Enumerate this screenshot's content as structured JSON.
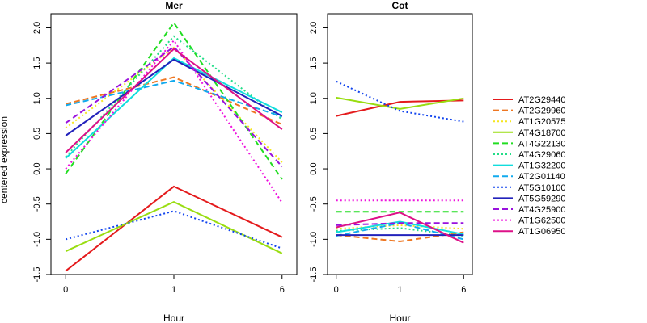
{
  "chart_data": {
    "type": "line",
    "ylabel": "centered expression",
    "xlabel": "Hour",
    "x": [
      "0",
      "1",
      "6"
    ],
    "ylim": [
      -1.5,
      2.2
    ],
    "legend_position": "right",
    "panels": [
      {
        "title": "Mer",
        "series": [
          {
            "name": "AT2G29440",
            "color": "#e41a1c",
            "dash": "solid",
            "values": [
              -1.45,
              -0.25,
              -0.97
            ]
          },
          {
            "name": "AT2G29960",
            "color": "#ee7722",
            "dash": "dashed",
            "values": [
              0.92,
              1.3,
              0.63
            ]
          },
          {
            "name": "AT1G20575",
            "color": "#f5e61e",
            "dash": "dotted",
            "values": [
              0.58,
              1.72,
              0.09
            ]
          },
          {
            "name": "AT4G18700",
            "color": "#99dd11",
            "dash": "solid",
            "values": [
              -1.17,
              -0.47,
              -1.2
            ]
          },
          {
            "name": "AT4G22130",
            "color": "#22dd22",
            "dash": "dashed",
            "values": [
              -0.07,
              2.07,
              -0.15
            ]
          },
          {
            "name": "AT4G29060",
            "color": "#22dd88",
            "dash": "dotted",
            "values": [
              0.17,
              1.88,
              0.7
            ]
          },
          {
            "name": "AT1G32200",
            "color": "#11dddd",
            "dash": "solid",
            "values": [
              0.15,
              1.57,
              0.8
            ]
          },
          {
            "name": "AT2G01140",
            "color": "#11aaee",
            "dash": "dashed",
            "values": [
              0.9,
              1.25,
              0.74
            ]
          },
          {
            "name": "AT5G10100",
            "color": "#1144ee",
            "dash": "dotted",
            "values": [
              -1.0,
              -0.6,
              -1.13
            ]
          },
          {
            "name": "AT5G59290",
            "color": "#2222bb",
            "dash": "solid",
            "values": [
              0.47,
              1.55,
              0.75
            ]
          },
          {
            "name": "AT4G25900",
            "color": "#9911dd",
            "dash": "dashed",
            "values": [
              0.65,
              1.73,
              0.03
            ]
          },
          {
            "name": "AT1G62500",
            "color": "#ee11dd",
            "dash": "dotted",
            "values": [
              0.0,
              1.82,
              -0.48
            ]
          },
          {
            "name": "AT1G06950",
            "color": "#dd1188",
            "dash": "solid",
            "values": [
              0.23,
              1.7,
              0.56
            ]
          }
        ]
      },
      {
        "title": "Cot",
        "series": [
          {
            "name": "AT2G29440",
            "color": "#e41a1c",
            "dash": "solid",
            "values": [
              0.75,
              0.95,
              0.97
            ]
          },
          {
            "name": "AT2G29960",
            "color": "#ee7722",
            "dash": "dashed",
            "values": [
              -0.94,
              -1.03,
              -0.9
            ]
          },
          {
            "name": "AT1G20575",
            "color": "#f5e61e",
            "dash": "dotted",
            "values": [
              -0.85,
              -0.8,
              -0.85
            ]
          },
          {
            "name": "AT4G18700",
            "color": "#99dd11",
            "dash": "solid",
            "values": [
              1.01,
              0.85,
              1.0
            ]
          },
          {
            "name": "AT4G22130",
            "color": "#22dd22",
            "dash": "dashed",
            "values": [
              -0.61,
              -0.61,
              -0.61
            ]
          },
          {
            "name": "AT4G29060",
            "color": "#22dd88",
            "dash": "dotted",
            "values": [
              -0.88,
              -0.84,
              -0.95
            ]
          },
          {
            "name": "AT1G32200",
            "color": "#11dddd",
            "dash": "solid",
            "values": [
              -0.9,
              -0.75,
              -0.93
            ]
          },
          {
            "name": "AT2G01140",
            "color": "#11aaee",
            "dash": "dashed",
            "values": [
              -0.95,
              -0.77,
              -1.0
            ]
          },
          {
            "name": "AT5G10100",
            "color": "#1144ee",
            "dash": "dotted",
            "values": [
              1.24,
              0.82,
              0.67
            ]
          },
          {
            "name": "AT5G59290",
            "color": "#2222bb",
            "dash": "solid",
            "values": [
              -0.94,
              -0.94,
              -0.94
            ]
          },
          {
            "name": "AT4G25900",
            "color": "#9911dd",
            "dash": "dashed",
            "values": [
              -0.8,
              -0.77,
              -0.77
            ]
          },
          {
            "name": "AT1G62500",
            "color": "#ee11dd",
            "dash": "dotted",
            "values": [
              -0.45,
              -0.45,
              -0.45
            ]
          },
          {
            "name": "AT1G06950",
            "color": "#dd1188",
            "dash": "solid",
            "values": [
              -0.83,
              -0.62,
              -1.05
            ]
          }
        ]
      }
    ]
  }
}
